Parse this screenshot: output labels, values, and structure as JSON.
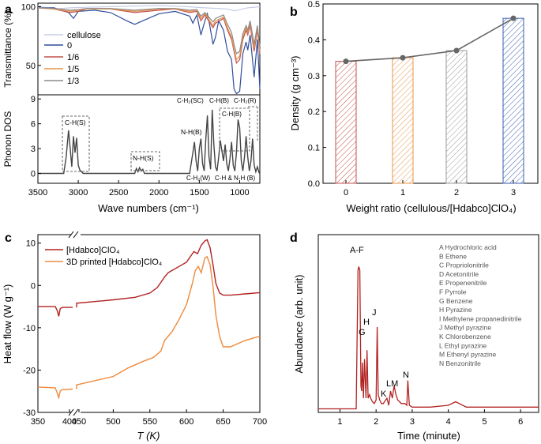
{
  "panel_labels": {
    "a": "a",
    "b": "b",
    "c": "c",
    "d": "d"
  },
  "chart_data": [
    {
      "id": "a-top",
      "type": "line",
      "ylabel": "Transmittance (%)",
      "xlim": [
        3500,
        750
      ],
      "ylim": [
        25,
        103
      ],
      "yticks": [
        100,
        50
      ],
      "legend": [
        "cellulose",
        "0",
        "1/6",
        "1/5",
        "1/3"
      ],
      "colors": [
        "#c8cde8",
        "#2f4e9c",
        "#c0504d",
        "#e8944a",
        "#8a8a8a"
      ],
      "series": [
        {
          "name": "cellulose",
          "x": [
            3500,
            3400,
            3300,
            3100,
            2900,
            2000,
            1640,
            1430,
            1160,
            1060,
            1030,
            900,
            750
          ],
          "values": [
            101,
            99,
            98,
            99,
            99.5,
            101,
            100,
            99,
            98,
            96.5,
            97,
            99,
            100
          ]
        },
        {
          "name": "0",
          "x": [
            3500,
            3300,
            3120,
            3060,
            3000,
            2800,
            2600,
            2400,
            2300,
            2200,
            2000,
            1800,
            1620,
            1580,
            1530,
            1480,
            1430,
            1400,
            1370,
            1330,
            1300,
            1260,
            1200,
            1150,
            1100,
            1070,
            1040,
            1000,
            960,
            920,
            900,
            870,
            820,
            780,
            750
          ],
          "values": [
            99,
            99,
            95,
            90,
            96,
            97,
            95,
            88,
            85,
            88,
            94,
            96,
            92,
            86,
            93,
            76,
            88,
            94,
            84,
            68,
            74,
            88,
            80,
            62,
            55,
            30,
            26,
            28,
            60,
            70,
            63,
            76,
            40,
            72,
            30
          ]
        },
        {
          "name": "1/6",
          "x": [
            3500,
            3300,
            3100,
            3000,
            2900,
            2600,
            2300,
            2000,
            1800,
            1620,
            1530,
            1480,
            1430,
            1330,
            1300,
            1200,
            1150,
            1100,
            1070,
            1040,
            1000,
            960,
            920,
            900,
            870,
            820,
            780,
            750
          ],
          "values": [
            99,
            98,
            95,
            96,
            98,
            98,
            95,
            97,
            98,
            95,
            96,
            88,
            93,
            82,
            86,
            90,
            80,
            72,
            62,
            52,
            55,
            72,
            80,
            76,
            84,
            62,
            80,
            60
          ]
        },
        {
          "name": "1/5",
          "x": [
            3500,
            3300,
            3100,
            3000,
            2900,
            2600,
            2300,
            2000,
            1800,
            1620,
            1530,
            1480,
            1430,
            1330,
            1300,
            1200,
            1150,
            1100,
            1070,
            1040,
            1000,
            960,
            920,
            900,
            870,
            820,
            780,
            750
          ],
          "values": [
            99,
            98,
            96,
            97,
            98,
            98,
            96,
            98,
            98,
            96,
            97,
            90,
            94,
            84,
            88,
            91,
            82,
            74,
            64,
            55,
            58,
            74,
            82,
            78,
            86,
            65,
            82,
            62
          ]
        },
        {
          "name": "1/3",
          "x": [
            3500,
            3300,
            3100,
            3000,
            2900,
            2600,
            2300,
            2000,
            1800,
            1620,
            1530,
            1480,
            1430,
            1330,
            1300,
            1200,
            1150,
            1100,
            1070,
            1040,
            1000,
            960,
            920,
            900,
            870,
            820,
            780,
            750
          ],
          "values": [
            99,
            98.5,
            97,
            97.5,
            98.5,
            98.5,
            97,
            98.5,
            98.5,
            97,
            97.5,
            92,
            95,
            87,
            90,
            93,
            85,
            78,
            68,
            60,
            62,
            77,
            84,
            80,
            88,
            68,
            84,
            66
          ]
        }
      ]
    },
    {
      "id": "a-bottom",
      "type": "line",
      "xlabel": "Wave numbers (cm⁻¹)",
      "ylabel": "Phonon DOS",
      "xlim": [
        3500,
        750
      ],
      "ylim": [
        -1,
        9.5
      ],
      "xticks": [
        3500,
        3000,
        2500,
        2000,
        1500,
        1000
      ],
      "yticks": [
        0,
        3,
        6,
        9
      ],
      "annotations": [
        "C-H(S)",
        "N-H(S)",
        "N-H(B)",
        "C-H₂(SC)",
        "C-H(B)",
        "C-H₂(R)",
        "C-H(B)",
        "C-H₂(W)",
        "C-H & N-H (B)"
      ],
      "x": [
        3500,
        3180,
        3150,
        3120,
        3100,
        3080,
        3060,
        3040,
        3020,
        3000,
        2980,
        2960,
        2940,
        2300,
        2280,
        2260,
        2240,
        2220,
        2200,
        2180,
        1620,
        1580,
        1560,
        1540,
        1520,
        1500,
        1480,
        1460,
        1440,
        1420,
        1400,
        1380,
        1360,
        1340,
        1320,
        1300,
        1280,
        1260,
        1240,
        1200,
        1180,
        1160,
        1140,
        1120,
        1100,
        1080,
        1060,
        1040,
        1020,
        1000,
        980,
        960,
        940,
        920,
        900,
        880,
        860,
        840,
        820,
        800,
        780,
        760,
        750
      ],
      "values": [
        0,
        0,
        2.0,
        5.2,
        3.0,
        0.8,
        4.5,
        2.5,
        4.3,
        1.0,
        0.4,
        0.2,
        0,
        0,
        0.6,
        0.2,
        0.7,
        0.3,
        0.5,
        0,
        0,
        2.5,
        3.8,
        1.5,
        0.3,
        3.0,
        4.2,
        1.2,
        0.3,
        4.0,
        7.0,
        2.0,
        0.5,
        7.7,
        3.5,
        0.8,
        0.3,
        2.0,
        4.0,
        1.5,
        3.5,
        1.2,
        0.3,
        1.8,
        3.8,
        1.0,
        0.3,
        2.5,
        6.5,
        5.5,
        1.5,
        0.3,
        2.0,
        4.5,
        2.0,
        0.3,
        1.5,
        4.2,
        1.0,
        0.2,
        0.8,
        0.1,
        0
      ]
    },
    {
      "id": "b",
      "type": "bar",
      "xlabel": "Weight ratio (cellulous/[Hdabco]ClO₄)",
      "ylabel": "Density (g cm⁻³)",
      "categories": [
        "0",
        "1",
        "2",
        "3"
      ],
      "values": [
        0.34,
        0.35,
        0.37,
        0.46
      ],
      "colors": [
        "#c0504d",
        "#e8944a",
        "#9a9a9a",
        "#3b5fb0"
      ],
      "ylim": [
        0.0,
        0.5
      ],
      "yticks": [
        "0.0",
        "0.1",
        "0.2",
        "0.3",
        "0.4",
        "0.5"
      ]
    },
    {
      "id": "c",
      "type": "line",
      "xlabel": "T (K)",
      "ylabel": "Heat flow (W g⁻¹)",
      "xticks": [
        "350",
        "400",
        "450",
        "500",
        "550",
        "600",
        "650",
        "700"
      ],
      "yticks": [
        "10",
        "0",
        "-10",
        "-20",
        "-30"
      ],
      "ylim": [
        -30,
        12
      ],
      "break_axis": true,
      "legend": [
        "[Hdabco]ClO₄",
        "3D printed [Hdabco]ClO₄"
      ],
      "colors": [
        "#b22222",
        "#ee8a3c"
      ],
      "series": [
        {
          "name": "[Hdabco]ClO₄",
          "x": [
            350,
            375,
            378,
            380,
            382,
            385,
            400,
            450,
            500,
            530,
            550,
            560,
            570,
            575,
            580,
            590,
            600,
            610,
            615,
            620,
            625,
            628,
            632,
            636,
            640,
            645,
            650,
            660,
            680,
            700
          ],
          "values": [
            -5.0,
            -5.0,
            -6.0,
            -7.3,
            -5.5,
            -5.2,
            -5.2,
            -4.2,
            -3.4,
            -2.8,
            -1.8,
            -0.5,
            2.0,
            3.0,
            3.5,
            4.5,
            5.5,
            8.0,
            7.5,
            9.5,
            10.5,
            10.8,
            9.0,
            5.0,
            0.5,
            -1.8,
            -2.3,
            -2.3,
            -2.0,
            -1.7
          ]
        },
        {
          "name": "3D printed [Hdabco]ClO₄",
          "x": [
            350,
            375,
            378,
            380,
            382,
            385,
            400,
            450,
            500,
            520,
            540,
            555,
            565,
            570,
            580,
            590,
            600,
            608,
            612,
            616,
            620,
            625,
            628,
            632,
            636,
            640,
            645,
            650,
            660,
            680,
            700
          ],
          "values": [
            -24.0,
            -24.2,
            -25.5,
            -26.5,
            -25.0,
            -24.6,
            -24.5,
            -23.5,
            -21.5,
            -19.5,
            -18.0,
            -17.0,
            -15.5,
            -13.0,
            -11.0,
            -8.0,
            -4.5,
            0.5,
            3.5,
            4.5,
            3.0,
            6.5,
            6.8,
            5.0,
            0.0,
            -7.0,
            -12.0,
            -14.5,
            -14.5,
            -13.0,
            -12.0
          ]
        }
      ]
    },
    {
      "id": "d",
      "type": "line",
      "xlabel": "Time (minute)",
      "ylabel": "Abundance (arb. unit)",
      "xlim": [
        0.4,
        6.5
      ],
      "ylim": [
        0,
        100
      ],
      "xticks": [
        "1",
        "2",
        "3",
        "4",
        "5",
        "6"
      ],
      "peak_labels": [
        "A-F",
        "G",
        "H",
        "J",
        "K",
        "LM",
        "N"
      ],
      "legend_items": [
        "A  Hydrochloric acid",
        "B  Ethene",
        "C  Propriolonitrile",
        "D  Acetonitrile",
        "E  Propenenitrile",
        "F  Pyrrole",
        "G  Benzene",
        "H  Pyrazine",
        "I   Methylene propanedinitrile",
        "J  Methyl pyrazine",
        "K  Chlorobenzene",
        "L  Ethyl pyrazine",
        "M  Ethenyl pyrazine",
        "N  Benzonitrile"
      ],
      "color": "#b22222",
      "x": [
        0.4,
        1.0,
        1.45,
        1.5,
        1.52,
        1.55,
        1.58,
        1.6,
        1.62,
        1.65,
        1.68,
        1.72,
        1.75,
        1.78,
        1.82,
        1.85,
        1.9,
        1.95,
        2.0,
        2.03,
        2.06,
        2.1,
        2.15,
        2.2,
        2.3,
        2.35,
        2.4,
        2.45,
        2.5,
        2.55,
        2.6,
        2.65,
        2.7,
        2.8,
        2.85,
        2.88,
        2.92,
        3.0,
        3.5,
        4.0,
        4.2,
        4.5,
        5.0,
        5.5,
        6.0,
        6.5
      ],
      "values": [
        2,
        2,
        2,
        80,
        82,
        80,
        15,
        12,
        28,
        8,
        30,
        8,
        35,
        8,
        10,
        8,
        6,
        5,
        7,
        48,
        10,
        7,
        5,
        5,
        8,
        4,
        12,
        8,
        15,
        10,
        7,
        6,
        5,
        5,
        4,
        18,
        4,
        3,
        3,
        4,
        6,
        3,
        3,
        3,
        3,
        3
      ]
    }
  ]
}
